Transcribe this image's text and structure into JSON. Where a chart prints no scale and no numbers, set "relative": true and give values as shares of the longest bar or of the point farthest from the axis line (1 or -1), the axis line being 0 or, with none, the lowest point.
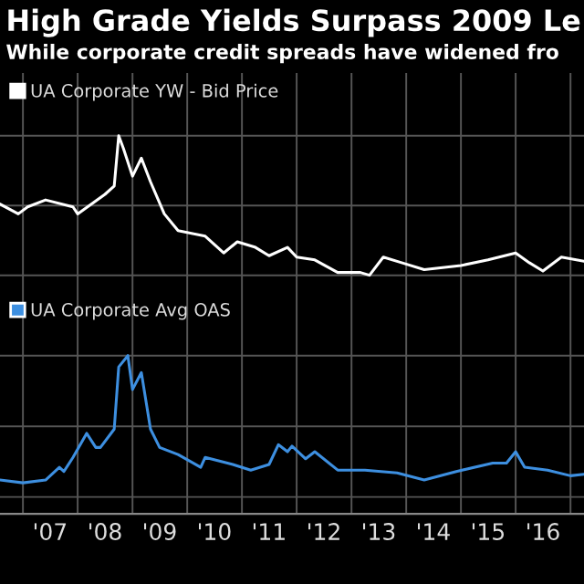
{
  "chart_data": [
    {
      "type": "line",
      "title": "High Grade Yields Surpass 2009 Le",
      "subtitle": "While corporate credit spreads have widened fro",
      "relative": true,
      "grid": true,
      "legend": "top left",
      "tick_labels": false,
      "xlim": [
        "2006-08",
        "2017-04"
      ],
      "series": [
        {
          "name": "UA Corporate YW - Bid Price",
          "color": "#ffffff",
          "x": [
            "2006-08",
            "2006-12",
            "2007-02",
            "2007-06",
            "2007-12",
            "2008-01",
            "2008-07",
            "2008-09",
            "2008-10",
            "2008-11",
            "2009-01",
            "2009-03",
            "2009-05",
            "2009-08",
            "2009-11",
            "2010-05",
            "2010-09",
            "2010-12",
            "2011-04",
            "2011-07",
            "2011-11",
            "2012-01",
            "2012-05",
            "2012-10",
            "2013-03",
            "2013-05",
            "2013-08",
            "2013-12",
            "2014-05",
            "2015-01",
            "2015-07",
            "2016-01",
            "2016-04",
            "2016-07",
            "2016-11",
            "2017-04"
          ],
          "values": [
            0.51,
            0.44,
            0.49,
            0.54,
            0.49,
            0.44,
            0.58,
            0.64,
            1.0,
            0.91,
            0.71,
            0.84,
            0.67,
            0.44,
            0.32,
            0.28,
            0.16,
            0.24,
            0.2,
            0.14,
            0.2,
            0.13,
            0.11,
            0.02,
            0.02,
            0,
            0.13,
            0.09,
            0.04,
            0.07,
            0.11,
            0.16,
            0.09,
            0.03,
            0.13,
            0.1
          ]
        }
      ]
    },
    {
      "type": "line",
      "relative": true,
      "grid": true,
      "legend": "top left",
      "tick_labels": "x",
      "xlim": [
        "2006-08",
        "2017-04"
      ],
      "xticks": [
        {
          "value": "2007-01",
          "label": null
        },
        {
          "value": "2007-07",
          "label": "'07"
        },
        {
          "value": "2008-01",
          "label": null
        },
        {
          "value": "2008-07",
          "label": "'08"
        },
        {
          "value": "2009-01",
          "label": null
        },
        {
          "value": "2009-07",
          "label": "'09"
        },
        {
          "value": "2010-01",
          "label": null
        },
        {
          "value": "2010-07",
          "label": "'10"
        },
        {
          "value": "2011-01",
          "label": null
        },
        {
          "value": "2011-07",
          "label": "'11"
        },
        {
          "value": "2012-01",
          "label": null
        },
        {
          "value": "2012-07",
          "label": "'12"
        },
        {
          "value": "2013-01",
          "label": null
        },
        {
          "value": "2013-07",
          "label": "'13"
        },
        {
          "value": "2014-01",
          "label": null
        },
        {
          "value": "2014-07",
          "label": "'14"
        },
        {
          "value": "2015-01",
          "label": null
        },
        {
          "value": "2015-07",
          "label": "'15"
        },
        {
          "value": "2016-01",
          "label": null
        },
        {
          "value": "2016-07",
          "label": "'16"
        },
        {
          "value": "2017-01",
          "label": null
        }
      ],
      "series": [
        {
          "name": "UA Corporate Avg OAS",
          "color": "#3d8fe0",
          "x": [
            "2006-08",
            "2007-01",
            "2007-06",
            "2007-09",
            "2007-10",
            "2007-12",
            "2008-03",
            "2008-05",
            "2008-06",
            "2008-09",
            "2008-10",
            "2008-12",
            "2009-01",
            "2009-03",
            "2009-05",
            "2009-07",
            "2009-11",
            "2010-04",
            "2010-05",
            "2010-11",
            "2011-03",
            "2011-07",
            "2011-09",
            "2011-11",
            "2011-12",
            "2012-03",
            "2012-05",
            "2012-10",
            "2013-04",
            "2013-11",
            "2014-05",
            "2014-12",
            "2015-08",
            "2015-11",
            "2016-01",
            "2016-03",
            "2016-08",
            "2017-01",
            "2017-04"
          ],
          "values": [
            0.12,
            0.1,
            0.12,
            0.21,
            0.18,
            0.28,
            0.45,
            0.35,
            0.35,
            0.48,
            0.92,
            1.0,
            0.76,
            0.88,
            0.48,
            0.35,
            0.3,
            0.21,
            0.28,
            0.23,
            0.19,
            0.23,
            0.37,
            0.32,
            0.36,
            0.27,
            0.32,
            0.19,
            0.19,
            0.17,
            0.12,
            0.18,
            0.24,
            0.24,
            0.32,
            0.21,
            0.19,
            0.15,
            0.16
          ]
        }
      ]
    }
  ]
}
